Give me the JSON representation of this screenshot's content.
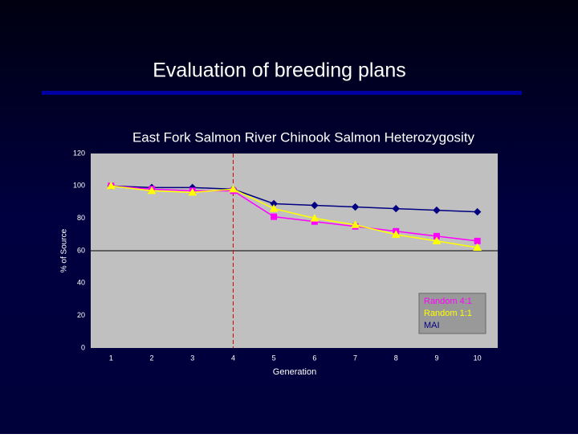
{
  "slide_title": "Evaluation of breeding plans",
  "chart_data": {
    "type": "line",
    "title": "East Fork Salmon River Chinook Salmon Heterozygosity",
    "x_label": "Generation",
    "y_label": "% of Source",
    "x": [
      1,
      2,
      3,
      4,
      5,
      6,
      7,
      8,
      9,
      10
    ],
    "xlim": [
      0.5,
      10.5
    ],
    "xticks": [
      1,
      2,
      3,
      4,
      5,
      6,
      7,
      8,
      9,
      10
    ],
    "ylim": [
      0,
      120
    ],
    "yticks": [
      0,
      20,
      40,
      60,
      80,
      100,
      120
    ],
    "hline": 60,
    "vline": 4,
    "legend": "bottom-right",
    "series": [
      {
        "name": "MAI",
        "color": "#000080",
        "marker": "diamond",
        "values": [
          100,
          99,
          99,
          98,
          89,
          88,
          87,
          86,
          85,
          84
        ]
      },
      {
        "name": "Random 4:1",
        "color": "#ff00ff",
        "marker": "square",
        "values": [
          100,
          98,
          97,
          97,
          81,
          78,
          75,
          72,
          69,
          66
        ]
      },
      {
        "name": "Random 1:1",
        "color": "#ffff00",
        "marker": "triangle",
        "values": [
          100,
          97,
          96,
          98,
          86,
          80,
          76,
          70,
          66,
          62
        ]
      }
    ]
  }
}
